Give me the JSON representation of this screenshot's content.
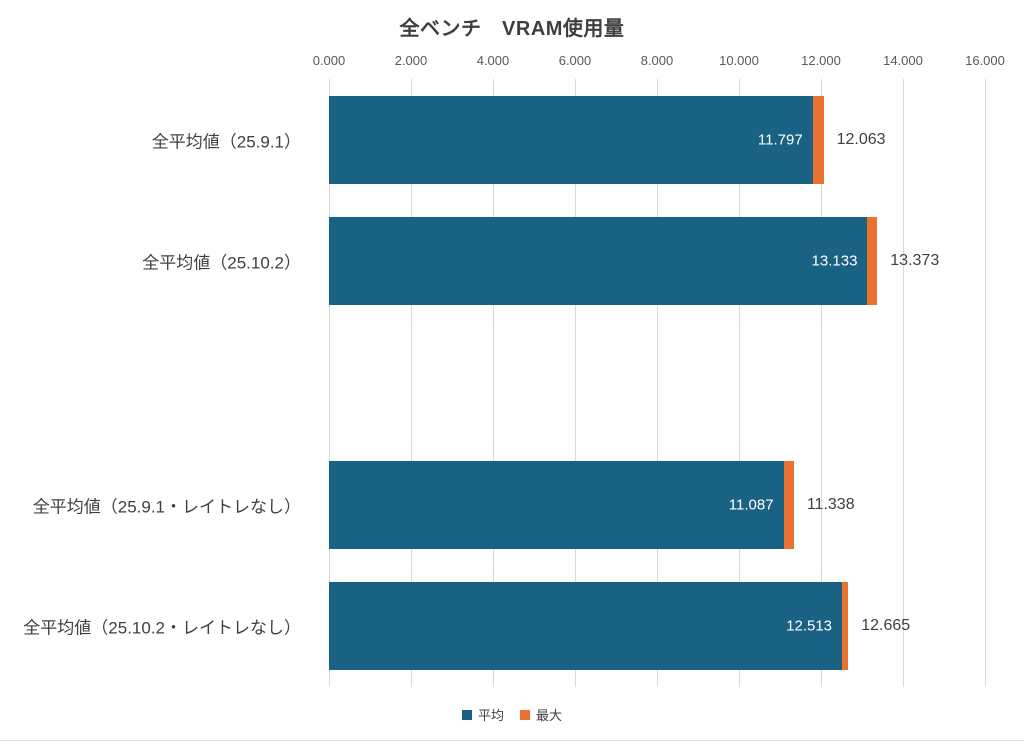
{
  "title": "全ベンチ　VRAM使用量",
  "colors": {
    "average_bar": "#1a6283",
    "max_bar": "#e97132",
    "gridline": "#d9d9d9",
    "axis_text": "#595959",
    "category_text": "#404040",
    "value_label_inside": "#ffffff",
    "value_label_outside": "#404040",
    "title_text": "#3f3f3f"
  },
  "legend": {
    "position": "bottom",
    "items": [
      {
        "label": "平均",
        "color_key": "average_bar"
      },
      {
        "label": "最大",
        "color_key": "max_bar"
      }
    ]
  },
  "chart_data": {
    "type": "bar",
    "orientation": "horizontal",
    "title": "全ベンチ　VRAM使用量",
    "categories": [
      "全平均値（25.9.1）",
      "全平均値（25.10.2）",
      "",
      "全平均値（25.9.1・レイトレなし）",
      "全平均値（25.10.2・レイトレなし）"
    ],
    "series": [
      {
        "name": "平均",
        "values": [
          11.797,
          13.133,
          null,
          11.087,
          12.513
        ],
        "labels": [
          "11.797",
          "13.133",
          "",
          "11.087",
          "12.513"
        ]
      },
      {
        "name": "最大",
        "values": [
          12.063,
          13.373,
          null,
          11.338,
          12.665
        ],
        "labels": [
          "12.063",
          "13.373",
          "",
          "11.338",
          "12.665"
        ]
      }
    ],
    "xlim": [
      0,
      16
    ],
    "x_ticks": [
      "0.000",
      "2.000",
      "4.000",
      "6.000",
      "8.000",
      "10.000",
      "12.000",
      "14.000",
      "16.000"
    ],
    "grid": true,
    "legend_position": "bottom",
    "render_note": "最大 series drawn as orange extension from 平均 value to 最大 value; middle category slot is blank"
  }
}
